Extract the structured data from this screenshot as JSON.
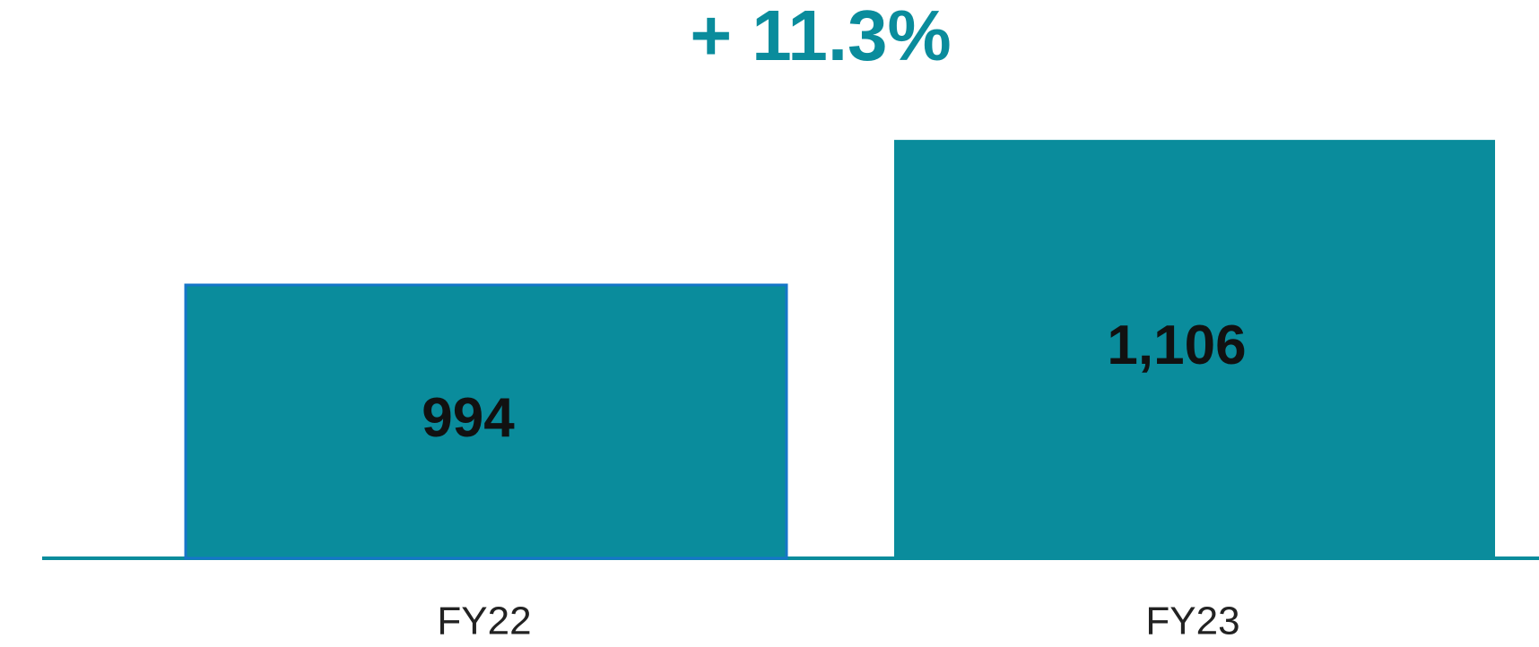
{
  "chart_data": {
    "type": "bar",
    "annotation": "+ 11.3%",
    "categories": [
      "FY22",
      "FY23"
    ],
    "values": [
      994,
      1106
    ],
    "value_labels": [
      "994",
      "1,106"
    ],
    "color": "#0a8c9c",
    "ylim": [
      783,
      1214
    ]
  }
}
